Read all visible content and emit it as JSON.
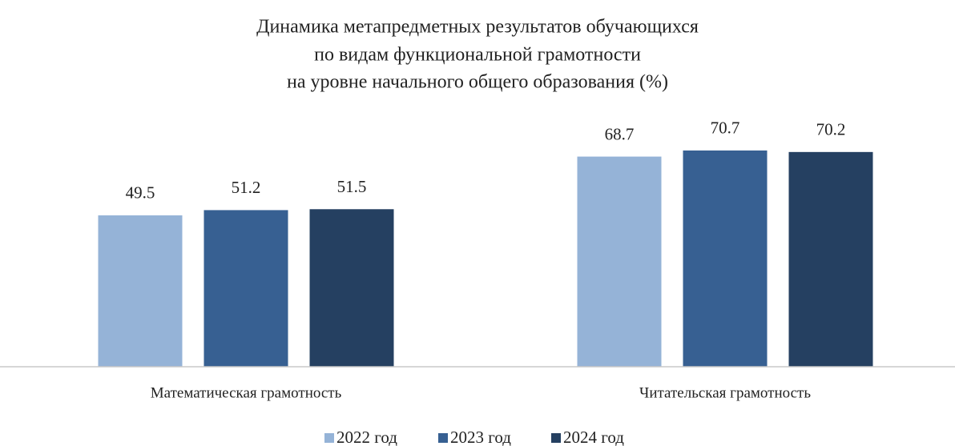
{
  "chart_data": {
    "type": "bar",
    "title": [
      "Динамика метапредметных результатов обучающихся",
      "по видам функциональной грамотности",
      "на уровне начального общего образования (%)"
    ],
    "categories": [
      "Математическая грамотность",
      "Читательская грамотность"
    ],
    "series": [
      {
        "name": "2022 год",
        "color": "#95b3d7",
        "values": [
          49.5,
          68.7
        ]
      },
      {
        "name": "2023 год",
        "color": "#376092",
        "values": [
          51.2,
          70.7
        ]
      },
      {
        "name": "2024 год",
        "color": "#254061",
        "values": [
          51.5,
          70.2
        ]
      }
    ],
    "legend": "bottom"
  }
}
